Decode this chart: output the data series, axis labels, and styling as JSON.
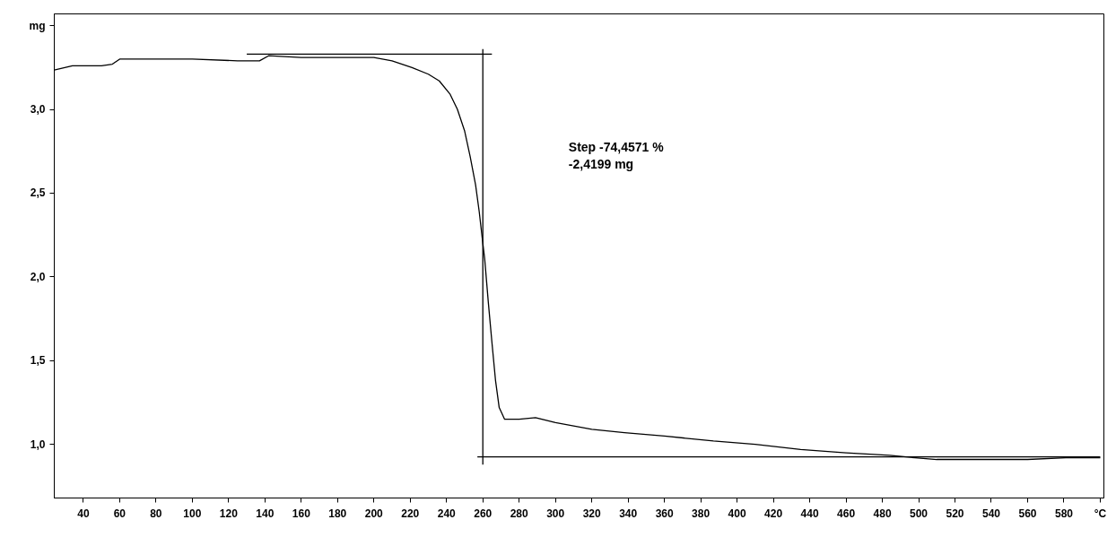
{
  "chart_data": {
    "type": "line",
    "grid": false,
    "line_style": "solid",
    "marker": "none",
    "xlim": [
      24,
      602
    ],
    "ylim": [
      0.68,
      3.57
    ],
    "xticks": [
      40,
      60,
      80,
      100,
      120,
      140,
      160,
      180,
      200,
      220,
      240,
      260,
      280,
      300,
      320,
      340,
      360,
      380,
      400,
      420,
      440,
      460,
      480,
      500,
      520,
      540,
      560,
      580,
      {
        "value": 600,
        "label": "°C"
      }
    ],
    "yticks": [
      {
        "value": 1.0,
        "label": "1,0"
      },
      {
        "value": 1.5,
        "label": "1,5"
      },
      {
        "value": 2.0,
        "label": "2,0"
      },
      {
        "value": 2.5,
        "label": "2,5"
      },
      {
        "value": 3.0,
        "label": "3,0"
      },
      {
        "value": 3.5,
        "label": "mg"
      }
    ],
    "annotations": [
      "Step  -74,4571 %\n          -2,4199 mg"
    ],
    "series": [
      {
        "color": "#000000",
        "x": [
          24,
          34,
          50,
          56,
          60,
          80,
          100,
          125,
          137,
          142,
          160,
          180,
          200,
          210,
          221,
          230,
          236,
          242,
          246,
          250,
          253,
          256,
          258,
          260,
          261,
          263,
          265,
          267,
          269,
          272,
          280,
          289,
          300,
          320,
          338,
          360,
          387,
          410,
          435,
          460,
          484,
          498,
          510,
          532,
          560,
          581,
          600
        ],
        "values": [
          3.235,
          3.26,
          3.26,
          3.27,
          3.3,
          3.3,
          3.3,
          3.29,
          3.29,
          3.32,
          3.31,
          3.31,
          3.31,
          3.29,
          3.25,
          3.21,
          3.17,
          3.09,
          3.0,
          2.87,
          2.72,
          2.55,
          2.39,
          2.2,
          2.11,
          1.85,
          1.61,
          1.38,
          1.22,
          1.15,
          1.15,
          1.16,
          1.13,
          1.09,
          1.07,
          1.05,
          1.02,
          1.0,
          0.97,
          0.95,
          0.935,
          0.92,
          0.91,
          0.91,
          0.91,
          0.92,
          0.92
        ]
      },
      {
        "color": "#000000",
        "x": [
          130,
          265
        ],
        "values": [
          3.33,
          3.33
        ]
      },
      {
        "color": "#000000",
        "x": [
          260,
          260
        ],
        "values": [
          3.36,
          0.88
        ]
      },
      {
        "color": "#000000",
        "x": [
          257,
          600
        ],
        "values": [
          0.925,
          0.925
        ]
      }
    ]
  }
}
